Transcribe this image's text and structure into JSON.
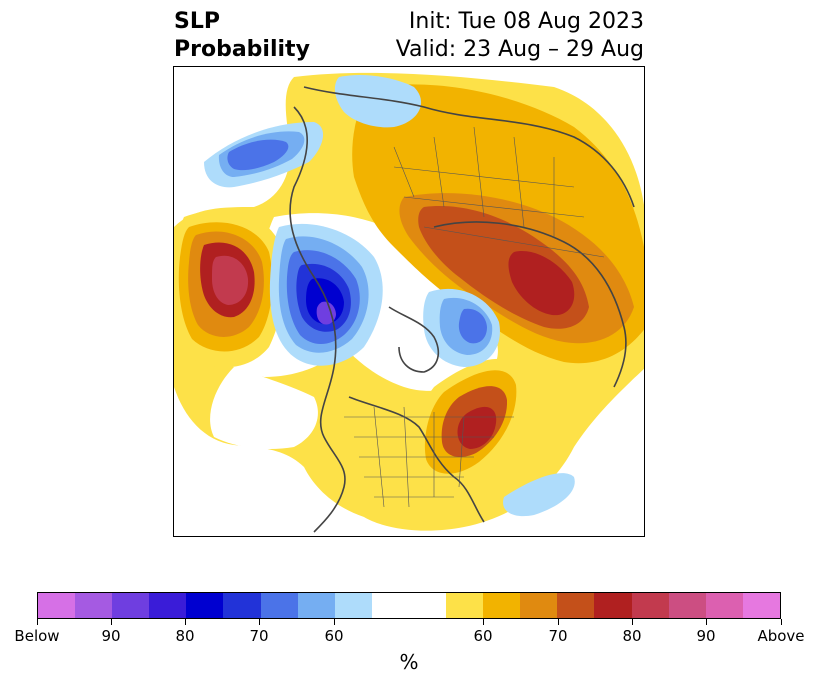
{
  "title": {
    "left_line1": "SLP",
    "left_line2": "Probability",
    "right_line1": "Init: Tue 08 Aug 2023",
    "right_line2": "Valid: 23 Aug – 29 Aug"
  },
  "colorbar": {
    "colors": [
      "#d670e6",
      "#a55ae2",
      "#6f3ee0",
      "#3a1cd8",
      "#0000d0",
      "#2233d8",
      "#4b73e8",
      "#75aef2",
      "#aedcfb",
      "#ffffff",
      "#ffffff",
      "#fde148",
      "#f2b300",
      "#e08a10",
      "#c4501a",
      "#b02020",
      "#c23a4e",
      "#cc4e82",
      "#dc60b0",
      "#e678e0"
    ],
    "tick_labels": [
      "Below",
      "90",
      "80",
      "70",
      "60",
      "60",
      "70",
      "80",
      "90",
      "Above"
    ],
    "units": "%"
  },
  "legend_colors": {
    "above_yellow": "#fde148",
    "above_orange": "#f2b300",
    "above_darkorange": "#e08a10",
    "above_rust": "#c4501a",
    "above_red": "#b02020",
    "above_crimson": "#c23a4e",
    "below_lightblue": "#aedcfb",
    "below_skyblue": "#75aef2",
    "below_blue": "#4b73e8",
    "below_royal": "#2233d8",
    "below_navy": "#0000d0",
    "below_purple": "#6f3ee0"
  }
}
